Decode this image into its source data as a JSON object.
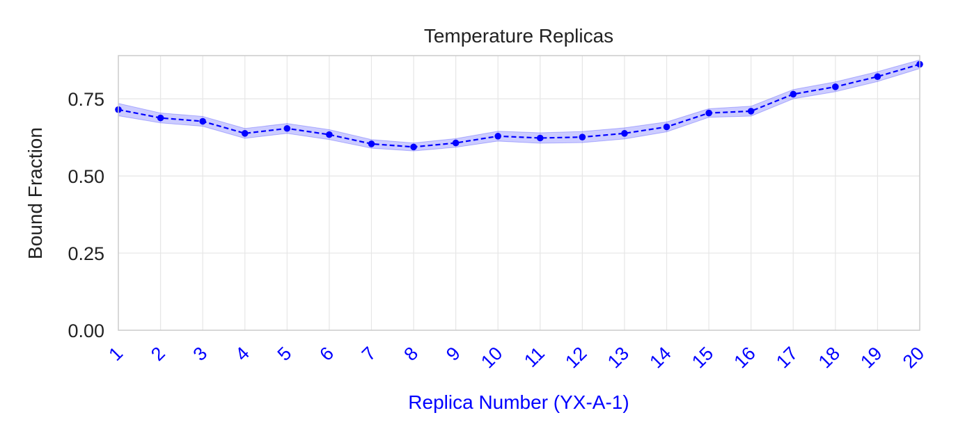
{
  "chart_data": {
    "type": "line",
    "title": "Temperature Replicas",
    "xlabel": "Replica Number (YX-A-1)",
    "ylabel": "Bound Fraction",
    "x": [
      1,
      2,
      3,
      4,
      5,
      6,
      7,
      8,
      9,
      10,
      11,
      12,
      13,
      14,
      15,
      16,
      17,
      18,
      19,
      20
    ],
    "x_tick_labels": [
      "1",
      "2",
      "3",
      "4",
      "5",
      "6",
      "7",
      "8",
      "9",
      "10",
      "11",
      "12",
      "13",
      "14",
      "15",
      "16",
      "17",
      "18",
      "19",
      "20"
    ],
    "series": [
      {
        "values": [
          0.715,
          0.688,
          0.677,
          0.638,
          0.654,
          0.634,
          0.604,
          0.594,
          0.607,
          0.629,
          0.623,
          0.626,
          0.638,
          0.659,
          0.704,
          0.71,
          0.765,
          0.789,
          0.822,
          0.862
        ],
        "band_lower": [
          0.695,
          0.672,
          0.661,
          0.622,
          0.638,
          0.618,
          0.59,
          0.581,
          0.593,
          0.613,
          0.606,
          0.608,
          0.62,
          0.643,
          0.69,
          0.694,
          0.75,
          0.773,
          0.806,
          0.848
        ],
        "band_upper": [
          0.735,
          0.704,
          0.693,
          0.654,
          0.67,
          0.65,
          0.618,
          0.607,
          0.621,
          0.645,
          0.64,
          0.644,
          0.656,
          0.675,
          0.718,
          0.726,
          0.78,
          0.805,
          0.838,
          0.876
        ],
        "color": "#0000ff",
        "band_color": "#0000ff",
        "line_style": "dashed",
        "marker": "circle"
      }
    ],
    "y_ticks": [
      0.0,
      0.25,
      0.5,
      0.75
    ],
    "y_tick_labels": [
      "0.00",
      "0.25",
      "0.50",
      "0.75"
    ],
    "xlim": [
      1,
      20
    ],
    "ylim": [
      0.0,
      0.89
    ],
    "grid": true,
    "x_tick_rotation": 45,
    "x_tick_color": "#0000ff",
    "xlabel_color": "#0000ff",
    "grid_color": "#e6e6e6",
    "spine_color": "#cccccc"
  }
}
